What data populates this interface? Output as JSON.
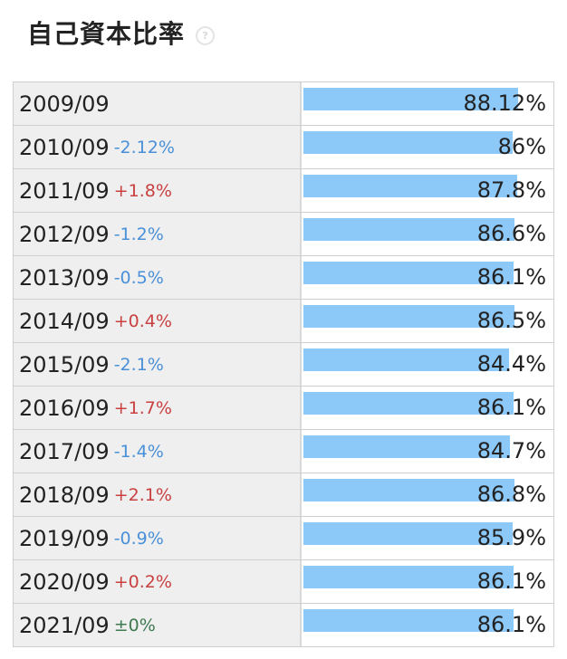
{
  "title": "自己資本比率",
  "help_icon": "question-circle-icon",
  "colors": {
    "bar": "#8cc8f8",
    "change_down": "#4a90d9",
    "change_up": "#c94040",
    "change_flat": "#3d7a4f"
  },
  "chart_data": {
    "type": "bar",
    "orientation": "horizontal",
    "title": "自己資本比率",
    "unit": "%",
    "categories": [
      "2009/09",
      "2010/09",
      "2011/09",
      "2012/09",
      "2013/09",
      "2014/09",
      "2015/09",
      "2016/09",
      "2017/09",
      "2018/09",
      "2019/09",
      "2020/09",
      "2021/09"
    ],
    "values": [
      88.12,
      86,
      87.8,
      86.6,
      86.1,
      86.5,
      84.4,
      86.1,
      84.7,
      86.8,
      85.9,
      86.1,
      86.1
    ],
    "value_labels": [
      "88.12%",
      "86%",
      "87.8%",
      "86.6%",
      "86.1%",
      "86.5%",
      "84.4%",
      "86.1%",
      "84.7%",
      "86.8%",
      "85.9%",
      "86.1%",
      "86.1%"
    ],
    "changes": [
      "",
      "-2.12%",
      "+1.8%",
      "-1.2%",
      "-0.5%",
      "+0.4%",
      "-2.1%",
      "+1.7%",
      "-1.4%",
      "+2.1%",
      "-0.9%",
      "+0.2%",
      "±0%"
    ],
    "change_directions": [
      "",
      "down",
      "up",
      "down",
      "down",
      "up",
      "down",
      "up",
      "down",
      "up",
      "down",
      "up",
      "flat"
    ],
    "xlim": [
      0,
      100
    ]
  }
}
